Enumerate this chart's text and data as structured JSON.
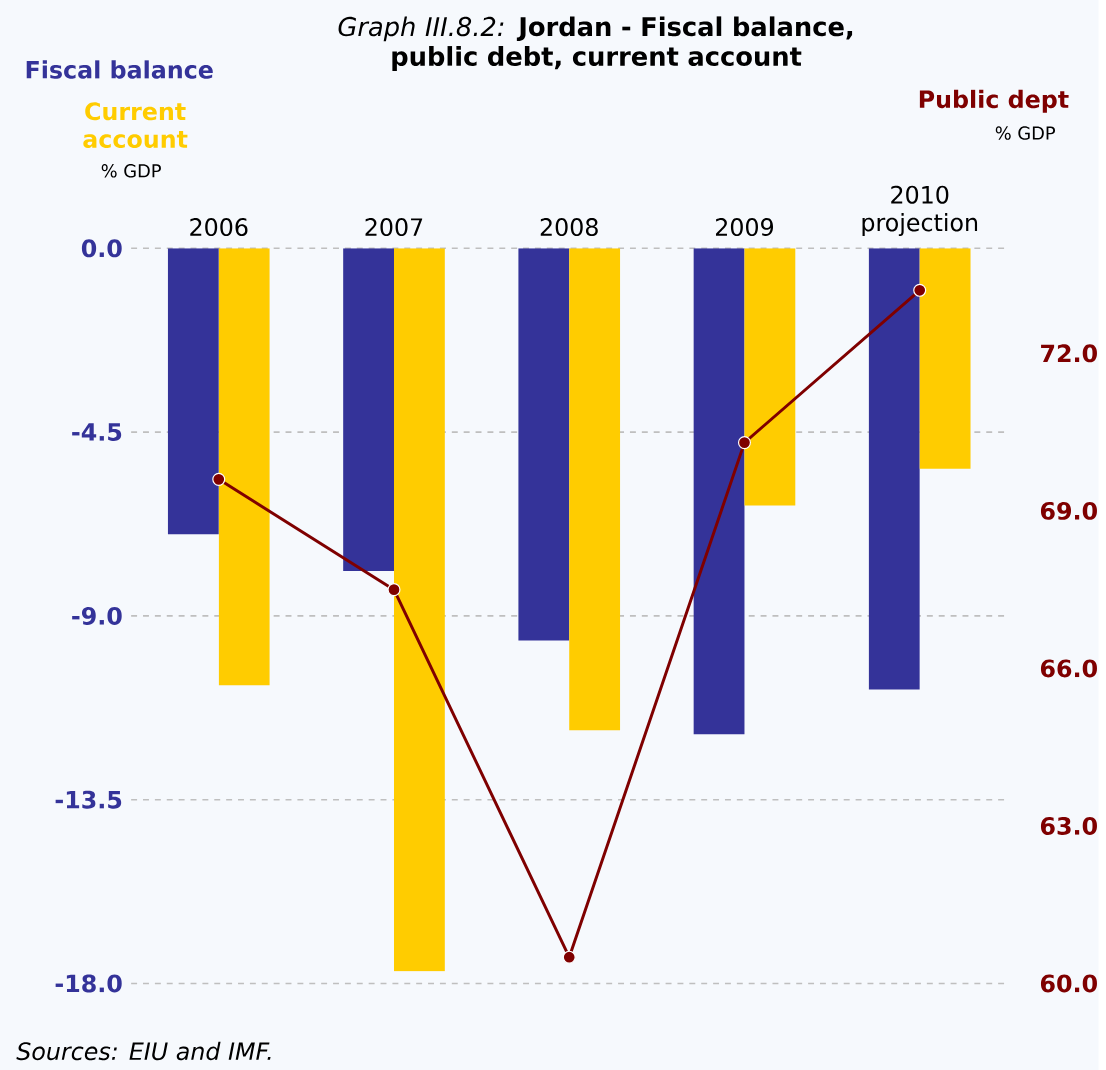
{
  "chart_data": {
    "type": "bar",
    "title": "*Graph III.8.2:* **Jordan - Fiscal balance, public debt, current account**",
    "ylabel": "% GDP",
    "y2label": "% GDP",
    "annotations": [
      "Sources: EIU and IMF."
    ],
    "categories": [
      "2006",
      "2007",
      "2008",
      "2009",
      "2010 projection"
    ],
    "series": [
      {
        "name": "Fiscal balance",
        "color": "#343399",
        "values": [
          -7.0,
          -7.9,
          -9.6,
          -11.9,
          -10.8
        ]
      },
      {
        "name": "Current account",
        "color": "#ffcc00",
        "values": [
          -10.7,
          -17.7,
          -11.8,
          -6.3,
          -5.4
        ]
      },
      {
        "name": "Public dept",
        "type": "line",
        "axis": "y2",
        "color": "#7f0000",
        "values": [
          69.6,
          67.5,
          60.5,
          70.3,
          73.2
        ]
      }
    ],
    "ylim": [
      -18,
      0
    ],
    "yticks": [
      {
        "value": 0,
        "label": "0.0"
      },
      {
        "value": -4.5,
        "label": "-4.5"
      },
      {
        "value": -9,
        "label": "-9.0"
      },
      {
        "value": -13.5,
        "label": "-13.5"
      },
      {
        "value": -18,
        "label": "-18.0"
      }
    ],
    "y2lim": [
      60,
      74
    ],
    "y2ticks": [
      {
        "value": 60,
        "label": "60.0"
      },
      {
        "value": 63,
        "label": "63.0"
      },
      {
        "value": 66,
        "label": "66.0"
      },
      {
        "value": 69,
        "label": "69.0"
      },
      {
        "value": 72,
        "label": "72.0"
      }
    ],
    "grid": "y",
    "marker": "circle",
    "line_style": "solid"
  }
}
